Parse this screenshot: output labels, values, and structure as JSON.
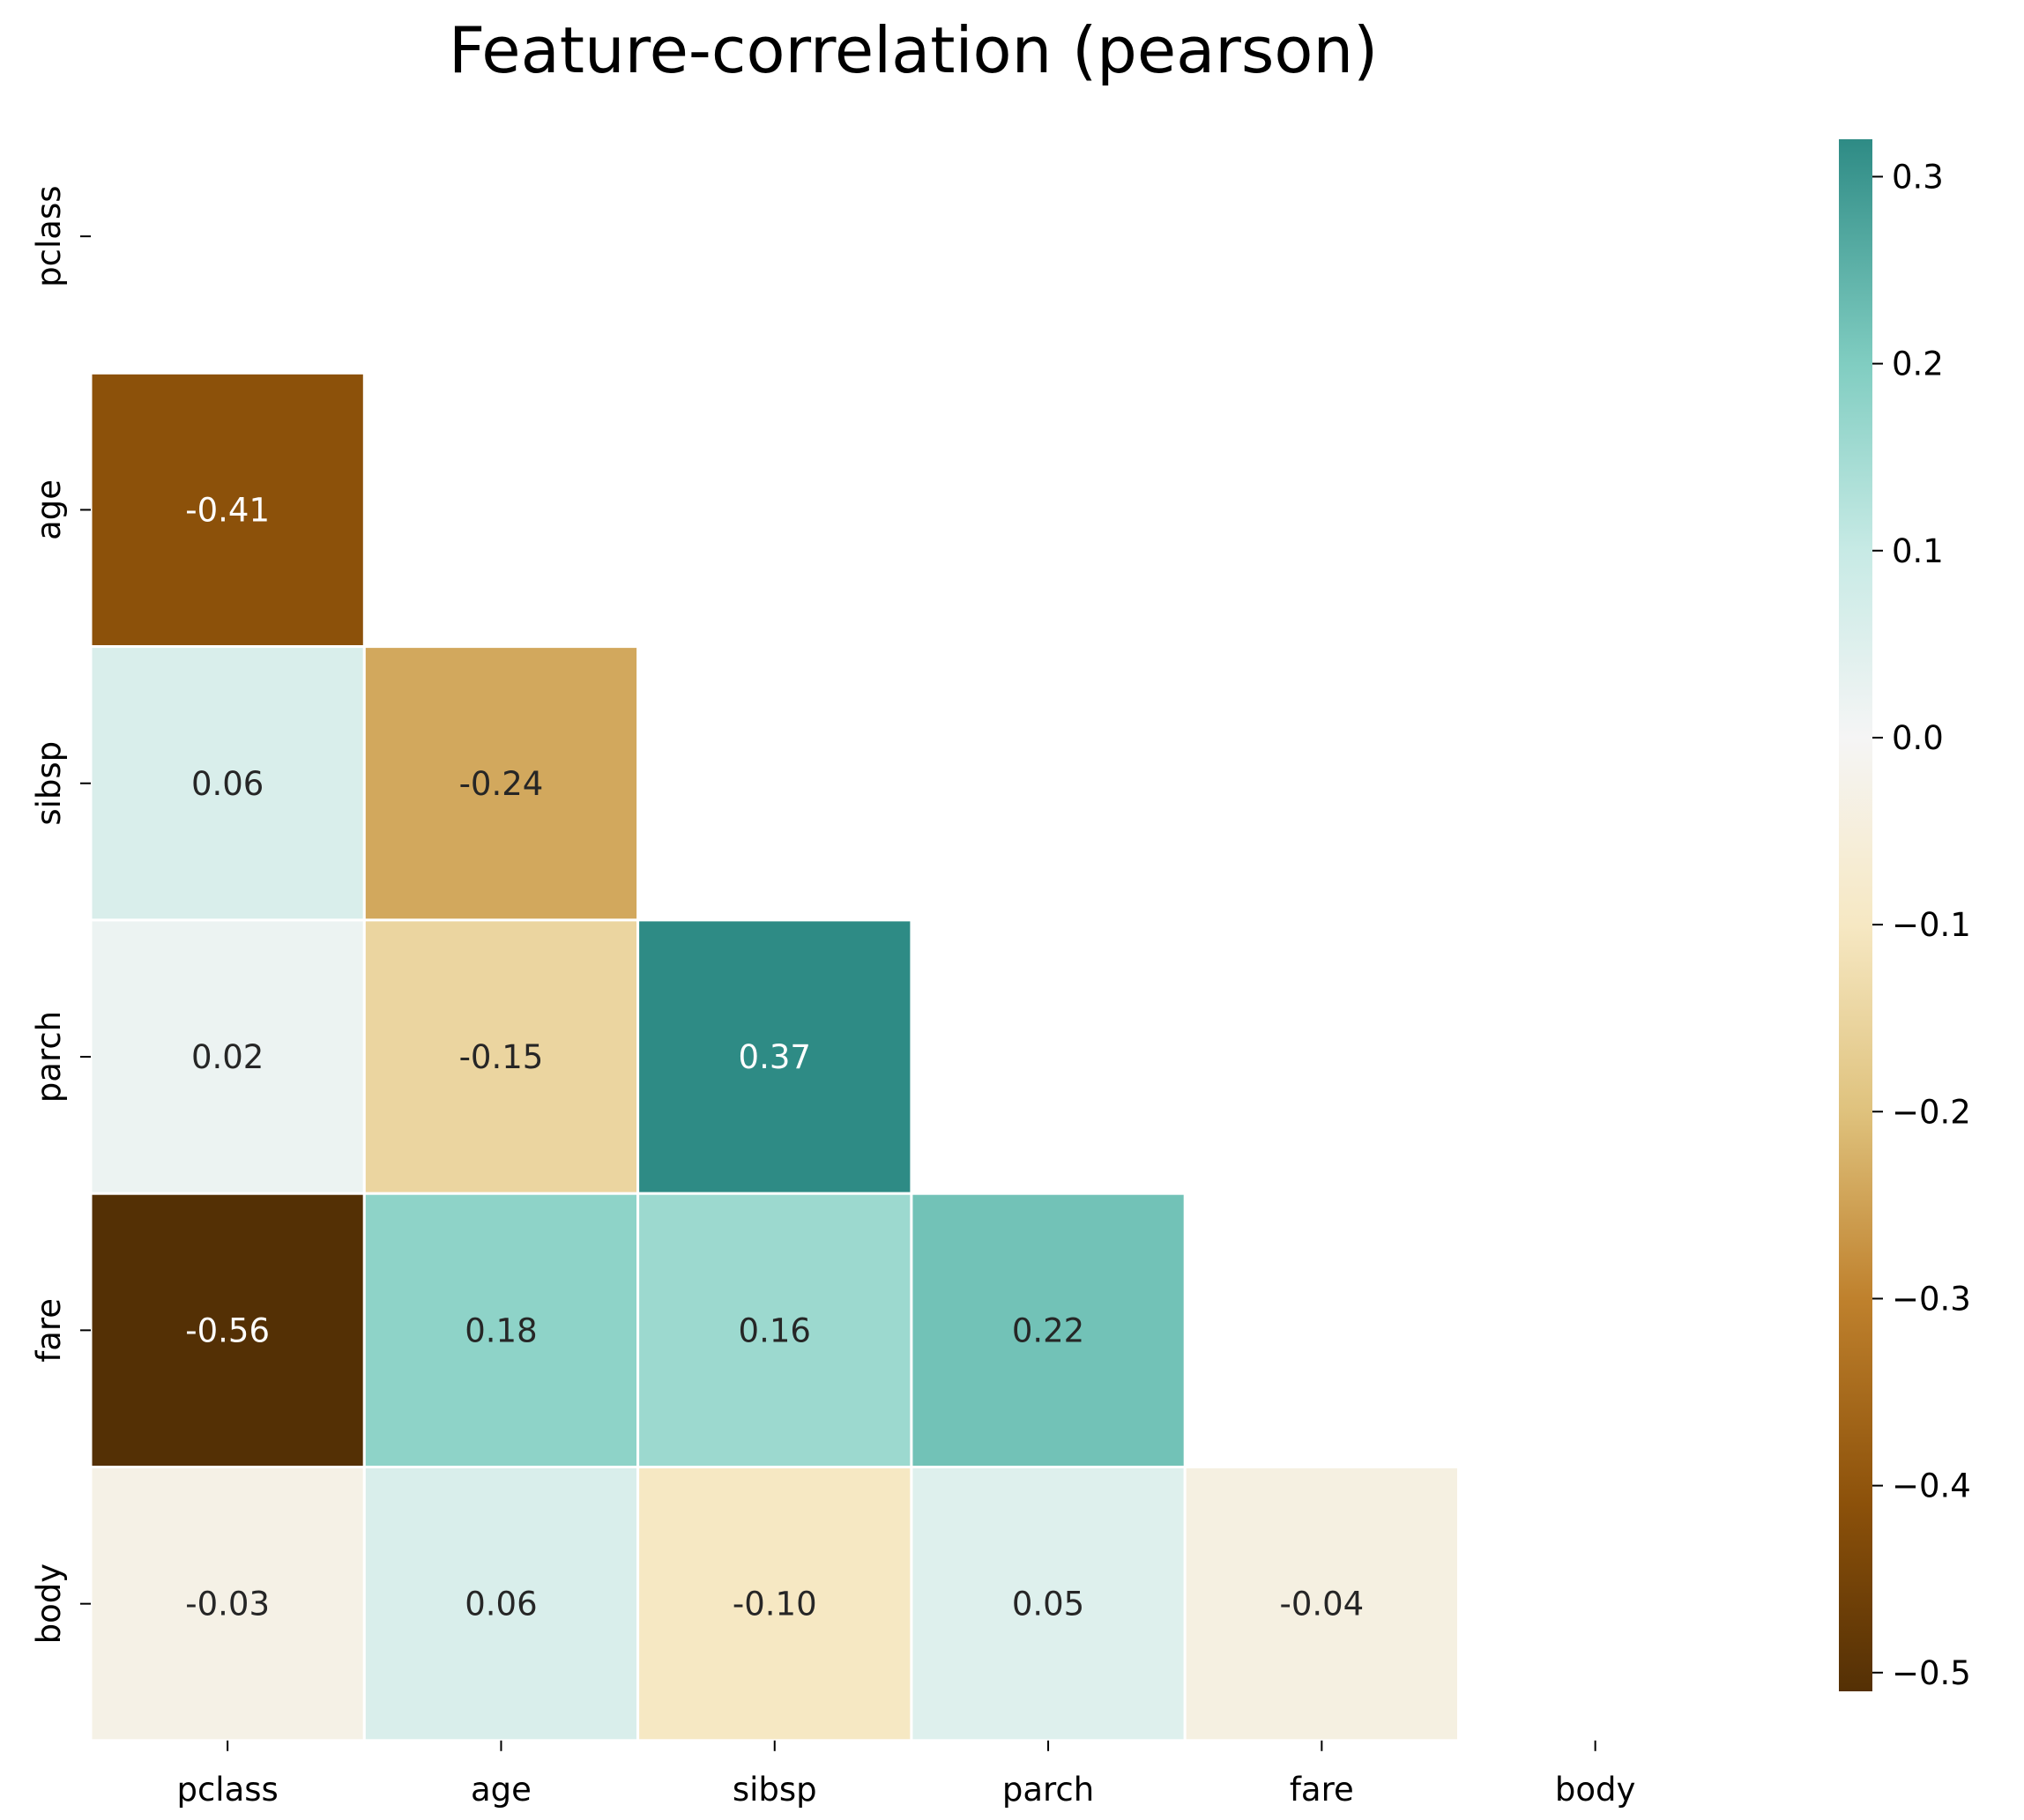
{
  "chart_data": {
    "type": "heatmap",
    "title": "Feature-correlation (pearson)",
    "xlabel": "",
    "ylabel": "",
    "labels": [
      "pclass",
      "age",
      "sibsp",
      "parch",
      "fare",
      "body"
    ],
    "mask": "upper-triangle-including-diagonal",
    "cells": [
      {
        "row": "age",
        "col": "pclass",
        "value": -0.41,
        "label": "-0.41"
      },
      {
        "row": "sibsp",
        "col": "pclass",
        "value": 0.06,
        "label": "0.06"
      },
      {
        "row": "sibsp",
        "col": "age",
        "value": -0.24,
        "label": "-0.24"
      },
      {
        "row": "parch",
        "col": "pclass",
        "value": 0.02,
        "label": "0.02"
      },
      {
        "row": "parch",
        "col": "age",
        "value": -0.15,
        "label": "-0.15"
      },
      {
        "row": "parch",
        "col": "sibsp",
        "value": 0.37,
        "label": "0.37"
      },
      {
        "row": "fare",
        "col": "pclass",
        "value": -0.56,
        "label": "-0.56"
      },
      {
        "row": "fare",
        "col": "age",
        "value": 0.18,
        "label": "0.18"
      },
      {
        "row": "fare",
        "col": "sibsp",
        "value": 0.16,
        "label": "0.16"
      },
      {
        "row": "fare",
        "col": "parch",
        "value": 0.22,
        "label": "0.22"
      },
      {
        "row": "body",
        "col": "pclass",
        "value": -0.03,
        "label": "-0.03"
      },
      {
        "row": "body",
        "col": "age",
        "value": 0.06,
        "label": "0.06"
      },
      {
        "row": "body",
        "col": "sibsp",
        "value": -0.1,
        "label": "-0.10"
      },
      {
        "row": "body",
        "col": "parch",
        "value": 0.05,
        "label": "0.05"
      },
      {
        "row": "body",
        "col": "fare",
        "value": -0.04,
        "label": "-0.04"
      }
    ],
    "colorbar": {
      "colormap": "BrBG (diverging, centered at 0)",
      "range": [
        -0.51,
        0.32
      ],
      "ticks": [
        0.3,
        0.2,
        0.1,
        0.0,
        -0.1,
        -0.2,
        -0.3,
        -0.4,
        -0.5
      ],
      "tick_labels": [
        "0.3",
        "0.2",
        "0.1",
        "0.0",
        "−0.1",
        "−0.2",
        "−0.3",
        "−0.4",
        "−0.5"
      ],
      "stops": [
        {
          "value": -0.51,
          "color": "#543005"
        },
        {
          "value": -0.41,
          "color": "#8c510a"
        },
        {
          "value": -0.3,
          "color": "#bf812d"
        },
        {
          "value": -0.2,
          "color": "#dfc27d"
        },
        {
          "value": -0.1,
          "color": "#f6e8c3"
        },
        {
          "value": 0.0,
          "color": "#f5f5f5"
        },
        {
          "value": 0.1,
          "color": "#c7eae5"
        },
        {
          "value": 0.2,
          "color": "#80cdc1"
        },
        {
          "value": 0.32,
          "color": "#2e8b85"
        }
      ]
    },
    "grid": false,
    "legend": "colorbar-right",
    "colors": {
      "annotation_dark_text": "#262626",
      "annotation_light_text": "#ffffff",
      "cell_border": "#ffffff",
      "axis_text": "#000000"
    }
  }
}
